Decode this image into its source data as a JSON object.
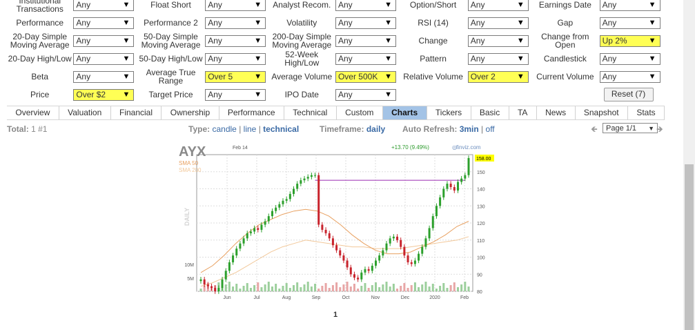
{
  "filters": {
    "rows": [
      [
        {
          "label": "Institutional Transactions",
          "value": "Any"
        },
        {
          "label": "Float Short",
          "value": "Any"
        },
        {
          "label": "Analyst Recom.",
          "value": "Any"
        },
        {
          "label": "Option/Short",
          "value": "Any"
        },
        {
          "label": "Earnings Date",
          "value": "Any"
        }
      ],
      [
        {
          "label": "Performance",
          "value": "Any"
        },
        {
          "label": "Performance 2",
          "value": "Any"
        },
        {
          "label": "Volatility",
          "value": "Any"
        },
        {
          "label": "RSI (14)",
          "value": "Any"
        },
        {
          "label": "Gap",
          "value": "Any"
        }
      ],
      [
        {
          "label": "20-Day Simple Moving Average",
          "value": "Any"
        },
        {
          "label": "50-Day Simple Moving Average",
          "value": "Any"
        },
        {
          "label": "200-Day Simple Moving Average",
          "value": "Any"
        },
        {
          "label": "Change",
          "value": "Any"
        },
        {
          "label": "Change from Open",
          "value": "Up 2%",
          "highlight": true
        }
      ],
      [
        {
          "label": "20-Day High/Low",
          "value": "Any"
        },
        {
          "label": "50-Day High/Low",
          "value": "Any"
        },
        {
          "label": "52-Week High/Low",
          "value": "Any"
        },
        {
          "label": "Pattern",
          "value": "Any"
        },
        {
          "label": "Candlestick",
          "value": "Any"
        }
      ],
      [
        {
          "label": "Beta",
          "value": "Any"
        },
        {
          "label": "Average True Range",
          "value": "Over 5",
          "highlight": true
        },
        {
          "label": "Average Volume",
          "value": "Over 500K",
          "highlight": true
        },
        {
          "label": "Relative Volume",
          "value": "Over 2",
          "highlight": true
        },
        {
          "label": "Current Volume",
          "value": "Any"
        }
      ],
      [
        {
          "label": "Price",
          "value": "Over $2",
          "highlight": true
        },
        {
          "label": "Target Price",
          "value": "Any"
        },
        {
          "label": "IPO Date",
          "value": "Any"
        }
      ]
    ],
    "reset_label": "Reset (7)"
  },
  "tabs": [
    "Overview",
    "Valuation",
    "Financial",
    "Ownership",
    "Performance",
    "Technical",
    "Custom",
    "Charts",
    "Tickers",
    "Basic",
    "TA",
    "News",
    "Snapshot",
    "Stats"
  ],
  "active_tab": "Charts",
  "infobar": {
    "total_label": "Total:",
    "total_value": "1 #1",
    "type_label": "Type:",
    "type_options": [
      "candle",
      "line",
      "technical"
    ],
    "timeframe_label": "Timeframe:",
    "timeframe_value": "daily",
    "refresh_label": "Auto Refresh:",
    "refresh_value": "3min",
    "refresh_off": "off",
    "page_select": "Page 1/1",
    "separator": "|"
  },
  "colors": {
    "highlight": "#ffff55",
    "active_tab": "#a3c3e6",
    "link": "#3a6aa5",
    "up": "#2ca02c",
    "down": "#c8232c",
    "sma50": "#e8a060",
    "sma200": "#f2c89a",
    "resistance": "#9a2ab0",
    "price_label": "#ffff00"
  },
  "chart_data": {
    "type": "candlestick",
    "ticker": "AYX",
    "date": "Feb 14",
    "change": "+13.70 (9.49%)",
    "source": "finviz.com",
    "legend": [
      "SMA 50",
      "SMA 200"
    ],
    "ylabel": "DAILY",
    "last_price_label": "158.00",
    "ylim": [
      80,
      160
    ],
    "yticks": [
      150,
      140,
      130,
      120,
      110,
      100,
      90,
      80
    ],
    "xticks": [
      "Jun",
      "Jul",
      "Aug",
      "Sep",
      "Oct",
      "Nov",
      "Dec",
      "2020",
      "Feb"
    ],
    "volume_ticks": [
      "10M",
      "5M"
    ],
    "resistance_level": 145,
    "price_path": [
      87,
      84,
      83,
      82,
      80,
      82,
      87,
      92,
      97,
      101,
      105,
      108,
      111,
      114,
      115,
      117,
      116,
      119,
      121,
      124,
      127,
      129,
      131,
      133,
      134,
      137,
      140,
      143,
      145,
      146,
      147,
      148,
      148,
      119,
      116,
      114,
      111,
      107,
      104,
      101,
      98,
      94,
      90,
      88,
      87,
      91,
      93,
      92,
      95,
      98,
      101,
      104,
      108,
      111,
      112,
      110,
      106,
      101,
      97,
      96,
      98,
      102,
      106,
      111,
      117,
      124,
      130,
      135,
      140,
      143,
      141,
      139,
      144,
      146,
      148,
      158
    ],
    "sma50": [
      91,
      95,
      101,
      108,
      114,
      119,
      122,
      125,
      127,
      128,
      127,
      124,
      119,
      113,
      108,
      104,
      102,
      102,
      103,
      106,
      109,
      113,
      118,
      121
    ],
    "sma200": [
      83,
      85,
      88,
      91,
      95,
      99,
      103,
      106,
      108,
      110,
      109,
      108,
      107,
      106,
      106,
      105,
      105,
      105,
      106,
      107,
      108,
      109,
      110,
      112
    ]
  },
  "pagination": {
    "current": "1"
  }
}
